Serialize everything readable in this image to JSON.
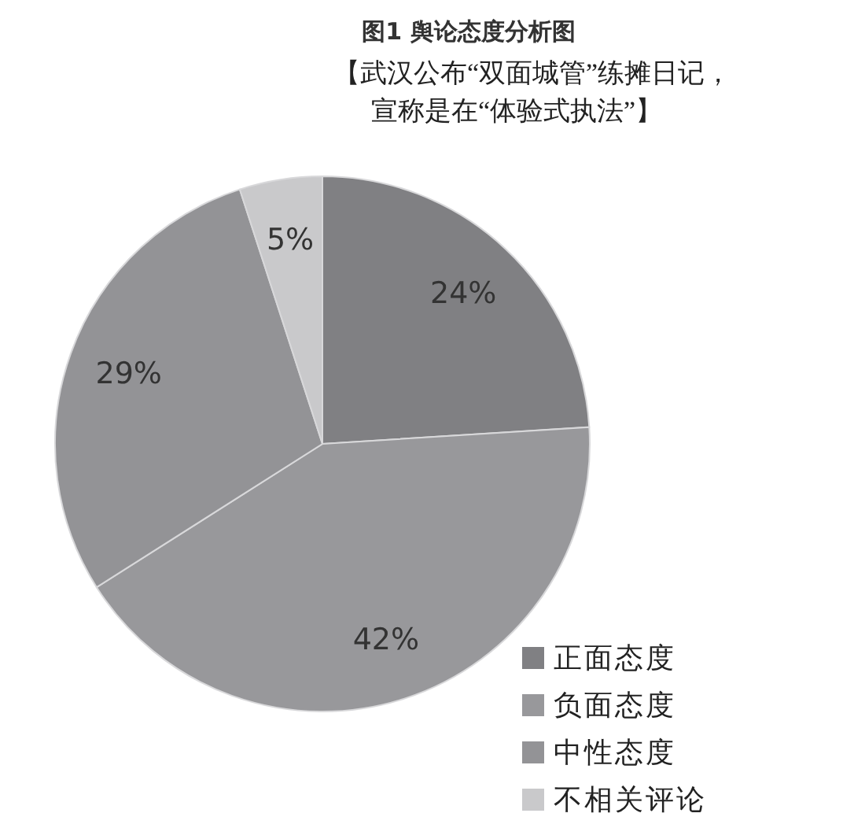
{
  "chart_data": {
    "type": "pie",
    "title": "图1 舆论态度分析图",
    "subtitle": "【武汉公布“双面城管”练摊日记，宣称是在“体验式执法”】",
    "categories": [
      "正面态度",
      "负面态度",
      "中性态度",
      "不相关评论"
    ],
    "values": [
      24,
      42,
      29,
      5
    ],
    "colors": [
      "#808083",
      "#98989b",
      "#939396",
      "#c9c9cb"
    ],
    "value_labels": [
      "24%",
      "42%",
      "29%",
      "5%"
    ],
    "legend": "bottom right"
  }
}
